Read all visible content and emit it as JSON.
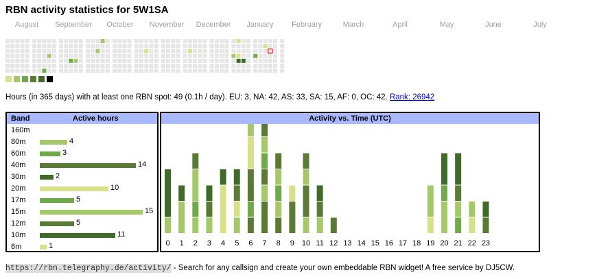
{
  "title": "RBN activity statistics for 5W1SA",
  "months": [
    "August",
    "September",
    "October",
    "November",
    "December",
    "January",
    "February",
    "March",
    "April",
    "May",
    "June",
    "July"
  ],
  "colors": {
    "empty": "#e6e6e6",
    "levels": [
      "#d8e08a",
      "#a4c86a",
      "#6fa94a",
      "#5b7a36",
      "#3f6a2a",
      "#000000"
    ],
    "panel_header": "#aab8ff",
    "today_border": "#cc0000"
  },
  "heatmap": {
    "weeks": 52,
    "active": [
      {
        "week": 18,
        "day": 0,
        "level": 1
      },
      {
        "week": 17,
        "day": 2,
        "level": 1
      },
      {
        "week": 8,
        "day": 3,
        "level": 1
      },
      {
        "week": 12,
        "day": 4,
        "level": 2
      },
      {
        "week": 13,
        "day": 4,
        "level": 1
      },
      {
        "week": 7,
        "day": 6,
        "level": 2
      },
      {
        "week": 26,
        "day": 2,
        "level": 0
      },
      {
        "week": 34,
        "day": 2,
        "level": 0
      },
      {
        "week": 42,
        "day": 3,
        "level": 1
      },
      {
        "week": 43,
        "day": 0,
        "level": 0
      },
      {
        "week": 43,
        "day": 3,
        "level": 0
      },
      {
        "week": 43,
        "day": 4,
        "level": 4
      },
      {
        "week": 44,
        "day": 4,
        "level": 4
      },
      {
        "week": 46,
        "day": 3,
        "level": 2
      },
      {
        "week": 48,
        "day": 1,
        "level": 0
      }
    ],
    "today": {
      "week": 49,
      "day": 2
    }
  },
  "legend_levels": 6,
  "summary": {
    "text": "Hours (in 365 days) with at least one RBN spot: 49 (0.1h / day). EU: 3, NA: 42, AS: 33, SA: 15, AF: 0, OC: 42.",
    "rank_link": "Rank: 26942"
  },
  "band_table": {
    "col_band": "Band",
    "col_hours": "Active hours",
    "max": 15,
    "rows": [
      {
        "band": "160m",
        "hours": null,
        "color": ""
      },
      {
        "band": "80m",
        "hours": 4,
        "color": "#a4c86a"
      },
      {
        "band": "60m",
        "hours": 3,
        "color": "#6fa94a"
      },
      {
        "band": "40m",
        "hours": 14,
        "color": "#5b7a36"
      },
      {
        "band": "30m",
        "hours": 2,
        "color": "#3f6a2a"
      },
      {
        "band": "20m",
        "hours": 10,
        "color": "#d8e08a"
      },
      {
        "band": "17m",
        "hours": 5,
        "color": "#6fa94a"
      },
      {
        "band": "15m",
        "hours": 15,
        "color": "#a4c86a"
      },
      {
        "band": "12m",
        "hours": 5,
        "color": "#5b7a36"
      },
      {
        "band": "10m",
        "hours": 11,
        "color": "#3f6a2a"
      },
      {
        "band": "6m",
        "hours": 1,
        "color": "#d8e08a"
      }
    ]
  },
  "time_chart": {
    "title": "Activity vs. Time (UTC)",
    "hours": [
      "0",
      "1",
      "2",
      "3",
      "4",
      "5",
      "6",
      "7",
      "8",
      "9",
      "10",
      "11",
      "12",
      "13",
      "14",
      "15",
      "16",
      "17",
      "18",
      "19",
      "20",
      "21",
      "22",
      "23"
    ],
    "stacks": [
      [
        [
          "#a4c86a",
          1
        ],
        [
          "#3f6a2a",
          3
        ]
      ],
      [
        [
          "#a4c86a",
          2
        ],
        [
          "#3f6a2a",
          1
        ]
      ],
      [
        [
          "#a4c86a",
          1
        ],
        [
          "#6fa94a",
          1
        ],
        [
          "#a4c86a",
          2
        ],
        [
          "#5b7a36",
          1
        ]
      ],
      [
        [
          "#a4c86a",
          1
        ],
        [
          "#5b7a36",
          1
        ],
        [
          "#3f6a2a",
          1
        ]
      ],
      [
        [
          "#d8e08a",
          3
        ],
        [
          "#3f6a2a",
          1
        ]
      ],
      [
        [
          "#a4c86a",
          1
        ],
        [
          "#d8e08a",
          1
        ],
        [
          "#5b7a36",
          1
        ],
        [
          "#3f6a2a",
          1
        ]
      ],
      [
        [
          "#5b7a36",
          1
        ],
        [
          "#6fa94a",
          1
        ],
        [
          "#5b7a36",
          2
        ],
        [
          "#d8e08a",
          2
        ],
        [
          "#a4c86a",
          1
        ]
      ],
      [
        [
          "#5b7a36",
          2
        ],
        [
          "#a4c86a",
          1
        ],
        [
          "#5b7a36",
          1
        ],
        [
          "#6fa94a",
          1
        ],
        [
          "#a4c86a",
          1
        ],
        [
          "#5b7a36",
          1
        ]
      ],
      [
        [
          "#5b7a36",
          1
        ],
        [
          "#a4c86a",
          1
        ],
        [
          "#6fa94a",
          1
        ],
        [
          "#a4c86a",
          1
        ],
        [
          "#5b7a36",
          1
        ]
      ],
      [
        [
          "#5b7a36",
          2
        ],
        [
          "#d8e08a",
          1
        ]
      ],
      [
        [
          "#a4c86a",
          1
        ],
        [
          "#5b7a36",
          2
        ],
        [
          "#a4c86a",
          1
        ],
        [
          "#5b7a36",
          1
        ]
      ],
      [
        [
          "#a4c86a",
          1
        ],
        [
          "#5b7a36",
          1
        ],
        [
          "#3f6a2a",
          1
        ]
      ],
      [
        [
          "#5b7a36",
          1
        ]
      ],
      [],
      [],
      [],
      [],
      [],
      [],
      [
        [
          "#d8e08a",
          1
        ],
        [
          "#a4c86a",
          2
        ]
      ],
      [
        [
          "#a4c86a",
          2
        ],
        [
          "#6fa94a",
          1
        ],
        [
          "#3f6a2a",
          2
        ]
      ],
      [
        [
          "#6fa94a",
          1
        ],
        [
          "#a4c86a",
          1
        ],
        [
          "#5b7a36",
          1
        ],
        [
          "#3f6a2a",
          2
        ]
      ],
      [
        [
          "#d8e08a",
          1
        ],
        [
          "#a4c86a",
          1
        ]
      ],
      [
        [
          "#5b7a36",
          1
        ],
        [
          "#3f6a2a",
          1
        ]
      ]
    ]
  },
  "footer": {
    "url": "https://rbn.telegraphy.de/activity/",
    "text": " - Search for any callsign and create your own embeddable RBN widget! A free service by DJ5CW."
  }
}
